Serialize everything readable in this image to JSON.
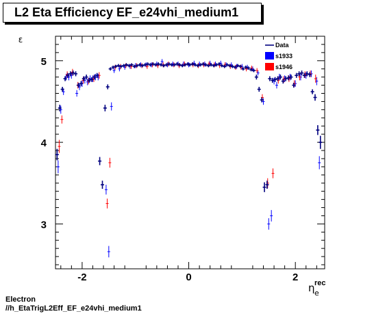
{
  "colors": {
    "data": "#00007f",
    "s1933": "#0000ff",
    "s1946": "#ff0000",
    "frame": "#000000"
  },
  "canvas": {
    "title": "L2 Eta Efficiency EF_e24vhi_medium1",
    "footer_line1": "Electron",
    "footer_line2": "//h_EtaTrigL2Eff_EF_e24vhi_medium1"
  },
  "chart_data": {
    "type": "scatter",
    "title": "L2 Eta Efficiency EF_e24vhi_medium1",
    "xlabel": "η",
    "xlabel_sub": "e",
    "xlabel_sup": "rec",
    "ylabel": "ε",
    "xlim": [
      -2.5,
      2.55
    ],
    "ylim": [
      2.45,
      5.3
    ],
    "x_ticks": [
      -2,
      0,
      2
    ],
    "x_tick_labels": [
      "-2",
      "0",
      "2"
    ],
    "y_ticks": [
      3,
      4,
      5
    ],
    "y_tick_labels": [
      "3",
      "4",
      "5"
    ],
    "grid": false,
    "legend_position": "top-right",
    "legend": [
      "Data",
      "s1933",
      "s1946"
    ],
    "series": [
      {
        "name": "Data",
        "style": "errorbar",
        "x": [
          -2.47,
          -2.42,
          -2.37,
          -2.32,
          -2.27,
          -2.22,
          -2.17,
          -2.12,
          -2.07,
          -2.02,
          -1.97,
          -1.92,
          -1.87,
          -1.82,
          -1.77,
          -1.72,
          -1.67,
          -1.62,
          -1.57,
          -1.52,
          -1.47,
          -1.42,
          -1.37,
          -1.32,
          -1.27,
          -1.22,
          -1.17,
          -1.12,
          -1.07,
          -1.02,
          -0.97,
          -0.92,
          -0.87,
          -0.82,
          -0.77,
          -0.72,
          -0.67,
          -0.62,
          -0.57,
          -0.52,
          -0.47,
          -0.42,
          -0.37,
          -0.32,
          -0.27,
          -0.22,
          -0.17,
          -0.12,
          -0.07,
          -0.02,
          0.02,
          0.07,
          0.12,
          0.17,
          0.22,
          0.27,
          0.32,
          0.37,
          0.42,
          0.47,
          0.52,
          0.57,
          0.62,
          0.67,
          0.72,
          0.77,
          0.82,
          0.87,
          0.92,
          0.97,
          1.02,
          1.07,
          1.12,
          1.17,
          1.22,
          1.27,
          1.32,
          1.37,
          1.42,
          1.47,
          1.52,
          1.57,
          1.62,
          1.67,
          1.72,
          1.77,
          1.82,
          1.87,
          1.92,
          1.97,
          2.02,
          2.07,
          2.12,
          2.17,
          2.22,
          2.27,
          2.32,
          2.37,
          2.42,
          2.47
        ],
        "y": [
          3.85,
          4.42,
          4.65,
          4.78,
          4.82,
          4.84,
          4.85,
          4.84,
          4.7,
          4.72,
          4.78,
          4.8,
          4.76,
          4.77,
          4.8,
          4.82,
          3.77,
          3.48,
          4.42,
          4.68,
          4.9,
          4.92,
          4.93,
          4.94,
          4.93,
          4.94,
          4.95,
          4.94,
          4.95,
          4.93,
          4.94,
          4.95,
          4.94,
          4.95,
          4.96,
          4.95,
          4.96,
          4.95,
          4.96,
          4.95,
          4.94,
          4.95,
          4.96,
          4.95,
          4.95,
          4.96,
          4.95,
          4.94,
          4.95,
          4.96,
          4.95,
          4.96,
          4.95,
          4.94,
          4.95,
          4.96,
          4.95,
          4.94,
          4.95,
          4.94,
          4.95,
          4.96,
          4.94,
          4.93,
          4.95,
          4.94,
          4.93,
          4.92,
          4.94,
          4.93,
          4.9,
          4.92,
          4.91,
          4.89,
          4.88,
          4.8,
          4.65,
          4.52,
          3.45,
          3.48,
          4.78,
          4.76,
          4.77,
          4.78,
          4.8,
          4.75,
          4.78,
          4.79,
          4.8,
          4.7,
          4.82,
          4.84,
          4.85,
          4.82,
          4.84,
          4.83,
          4.62,
          4.55,
          4.15,
          4.0
        ],
        "err": [
          0.07,
          0.04,
          0.03,
          0.03,
          0.03,
          0.03,
          0.03,
          0.03,
          0.03,
          0.03,
          0.03,
          0.03,
          0.03,
          0.03,
          0.03,
          0.03,
          0.05,
          0.05,
          0.04,
          0.03,
          0.02,
          0.02,
          0.02,
          0.02,
          0.02,
          0.02,
          0.02,
          0.02,
          0.02,
          0.02,
          0.02,
          0.02,
          0.02,
          0.02,
          0.02,
          0.02,
          0.02,
          0.02,
          0.02,
          0.02,
          0.02,
          0.02,
          0.02,
          0.02,
          0.02,
          0.02,
          0.02,
          0.02,
          0.02,
          0.02,
          0.02,
          0.02,
          0.02,
          0.02,
          0.02,
          0.02,
          0.02,
          0.02,
          0.02,
          0.02,
          0.02,
          0.02,
          0.02,
          0.02,
          0.02,
          0.02,
          0.02,
          0.02,
          0.02,
          0.02,
          0.02,
          0.02,
          0.02,
          0.02,
          0.02,
          0.03,
          0.03,
          0.03,
          0.06,
          0.05,
          0.03,
          0.03,
          0.03,
          0.03,
          0.03,
          0.03,
          0.03,
          0.03,
          0.03,
          0.03,
          0.03,
          0.03,
          0.03,
          0.03,
          0.03,
          0.03,
          0.03,
          0.04,
          0.06,
          0.08
        ]
      },
      {
        "name": "s1933",
        "style": "cross",
        "x": [
          -2.45,
          -2.4,
          -2.35,
          -2.3,
          -2.25,
          -2.2,
          -2.1,
          -2.05,
          -2.0,
          -1.95,
          -1.9,
          -1.85,
          -1.8,
          -1.75,
          -1.7,
          -1.55,
          -1.5,
          -1.45,
          -1.4,
          -1.3,
          -1.2,
          -1.1,
          -1.0,
          -0.9,
          -0.8,
          -0.7,
          -0.6,
          -0.5,
          -0.4,
          -0.3,
          -0.2,
          -0.1,
          0.0,
          0.1,
          0.2,
          0.3,
          0.4,
          0.5,
          0.6,
          0.7,
          0.8,
          0.9,
          1.0,
          1.1,
          1.2,
          1.3,
          1.4,
          1.5,
          1.55,
          1.6,
          1.65,
          1.7,
          1.8,
          1.9,
          2.0,
          2.1,
          2.2,
          2.3,
          2.4,
          2.45
        ],
        "y": [
          3.7,
          4.4,
          4.62,
          4.8,
          4.8,
          4.82,
          4.6,
          4.68,
          4.72,
          4.76,
          4.74,
          4.78,
          4.78,
          4.8,
          4.8,
          3.42,
          2.66,
          4.44,
          4.88,
          4.9,
          4.92,
          4.93,
          4.94,
          4.95,
          4.95,
          4.95,
          4.96,
          4.99,
          4.95,
          4.96,
          4.96,
          4.96,
          4.95,
          4.97,
          4.96,
          4.96,
          4.97,
          4.96,
          4.97,
          4.95,
          4.95,
          4.93,
          4.93,
          4.92,
          4.9,
          4.85,
          4.5,
          3.0,
          3.1,
          4.75,
          4.7,
          4.8,
          4.78,
          4.8,
          4.72,
          4.8,
          4.82,
          4.84,
          4.75,
          3.75
        ],
        "err": [
          0.08,
          0.05,
          0.04,
          0.04,
          0.04,
          0.04,
          0.04,
          0.04,
          0.04,
          0.04,
          0.04,
          0.04,
          0.04,
          0.04,
          0.04,
          0.06,
          0.07,
          0.05,
          0.03,
          0.03,
          0.03,
          0.03,
          0.03,
          0.03,
          0.03,
          0.03,
          0.03,
          0.03,
          0.03,
          0.03,
          0.03,
          0.03,
          0.03,
          0.03,
          0.03,
          0.03,
          0.03,
          0.03,
          0.03,
          0.03,
          0.03,
          0.03,
          0.03,
          0.03,
          0.03,
          0.03,
          0.04,
          0.07,
          0.07,
          0.04,
          0.04,
          0.04,
          0.04,
          0.04,
          0.04,
          0.04,
          0.04,
          0.04,
          0.05,
          0.08
        ]
      },
      {
        "name": "s1946",
        "style": "cross",
        "x": [
          -2.43,
          -2.38,
          -2.28,
          -2.18,
          -2.08,
          -1.98,
          -1.88,
          -1.78,
          -1.68,
          -1.53,
          -1.48,
          -1.38,
          -1.28,
          -1.18,
          -1.08,
          -0.98,
          -0.88,
          -0.78,
          -0.68,
          -0.58,
          -0.48,
          -0.38,
          -0.28,
          -0.18,
          -0.08,
          0.08,
          0.18,
          0.28,
          0.38,
          0.48,
          0.58,
          0.68,
          0.78,
          0.88,
          0.98,
          1.08,
          1.18,
          1.28,
          1.38,
          1.48,
          1.58,
          1.68,
          1.78,
          1.88,
          1.98,
          2.08,
          2.18,
          2.28,
          2.38,
          2.47
        ],
        "y": [
          3.95,
          4.28,
          4.83,
          4.86,
          4.7,
          4.76,
          4.75,
          4.78,
          4.82,
          3.25,
          3.75,
          4.92,
          4.93,
          4.94,
          4.93,
          4.94,
          4.94,
          4.93,
          4.95,
          4.94,
          4.95,
          4.96,
          4.95,
          4.94,
          4.96,
          4.95,
          4.94,
          4.95,
          4.96,
          4.95,
          4.94,
          4.95,
          4.93,
          4.92,
          4.92,
          4.9,
          4.91,
          4.88,
          4.55,
          3.5,
          3.62,
          4.76,
          4.77,
          4.78,
          4.72,
          4.8,
          4.83,
          4.84,
          4.78,
          4.0
        ],
        "err": [
          0.08,
          0.05,
          0.04,
          0.04,
          0.04,
          0.04,
          0.04,
          0.04,
          0.04,
          0.06,
          0.06,
          0.03,
          0.03,
          0.03,
          0.03,
          0.03,
          0.03,
          0.03,
          0.03,
          0.03,
          0.03,
          0.03,
          0.03,
          0.03,
          0.03,
          0.03,
          0.03,
          0.03,
          0.03,
          0.03,
          0.03,
          0.03,
          0.03,
          0.03,
          0.03,
          0.03,
          0.03,
          0.03,
          0.04,
          0.06,
          0.06,
          0.04,
          0.04,
          0.04,
          0.04,
          0.04,
          0.04,
          0.04,
          0.05,
          0.08
        ]
      }
    ]
  }
}
